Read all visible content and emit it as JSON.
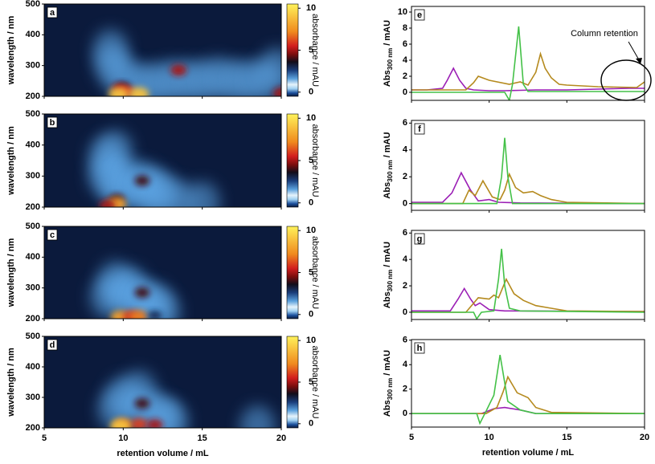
{
  "chart_data": [
    {
      "type": "heatmap",
      "panel_label": "a",
      "ylabel": "wavelength / nm",
      "xlim": [
        5,
        20
      ],
      "xticks": [
        5,
        10,
        15,
        20
      ],
      "ylim": [
        200,
        500
      ],
      "yticks": [
        200,
        300,
        400,
        500
      ],
      "clim": [
        -0.5,
        10.5
      ],
      "cticks": [
        0,
        5,
        10
      ],
      "colorbar_label": "absorbance / mAU",
      "spots": {
        "x": [
          9.3,
          10,
          11,
          12,
          13,
          14,
          15,
          16,
          17,
          18,
          19,
          19.7,
          9.2,
          10,
          9.8,
          10.2,
          9.7,
          11,
          13.5,
          20
        ],
        "y": [
          300,
          260,
          240,
          240,
          250,
          250,
          250,
          260,
          250,
          250,
          250,
          290,
          350,
          230,
          225,
          215,
          207,
          207,
          285,
          210
        ],
        "values": [
          1,
          1,
          1,
          1,
          1,
          1,
          1,
          1,
          1,
          1,
          1,
          1,
          1,
          3,
          5,
          6,
          9,
          9,
          5,
          5
        ]
      }
    },
    {
      "type": "heatmap",
      "panel_label": "b",
      "ylabel": "wavelength / nm",
      "xlim": [
        5,
        20
      ],
      "xticks": [
        5,
        10,
        15,
        20
      ],
      "ylim": [
        200,
        500
      ],
      "yticks": [
        200,
        300,
        400,
        500
      ],
      "clim": [
        -0.5,
        10.5
      ],
      "cticks": [
        0,
        5,
        10
      ],
      "colorbar_label": "absorbance / mAU",
      "spots": {
        "x": [
          8.9,
          8.9,
          9.5,
          9.5,
          9.8,
          10.5,
          11.2,
          11.5,
          12,
          12.5,
          13.5,
          15,
          9.6,
          9.6,
          11.2,
          9
        ],
        "y": [
          300,
          360,
          300,
          380,
          250,
          280,
          280,
          240,
          260,
          240,
          220,
          215,
          225,
          210,
          285,
          205
        ],
        "values": [
          1,
          1,
          1,
          1,
          1.5,
          1,
          1,
          1,
          1,
          1,
          1,
          1,
          4,
          8,
          4,
          5
        ]
      }
    },
    {
      "type": "heatmap",
      "panel_label": "c",
      "ylabel": "wavelength / nm",
      "xlim": [
        5,
        20
      ],
      "xticks": [
        5,
        10,
        15,
        20
      ],
      "ylim": [
        200,
        500
      ],
      "yticks": [
        200,
        300,
        400,
        500
      ],
      "clim": [
        -0.5,
        10.5
      ],
      "cticks": [
        0,
        5,
        10
      ],
      "colorbar_label": "absorbance / mAU",
      "spots": {
        "x": [
          9,
          9.5,
          10,
          10.5,
          11,
          11.5,
          12,
          12.5,
          11.2,
          9.8,
          10.5,
          11,
          12
        ],
        "y": [
          270,
          320,
          280,
          300,
          260,
          240,
          250,
          220,
          285,
          205,
          207,
          207,
          210
        ],
        "values": [
          1,
          1,
          1,
          1,
          1,
          1,
          1,
          1,
          4,
          8,
          6,
          7,
          3
        ]
      }
    },
    {
      "type": "heatmap",
      "panel_label": "d",
      "ylabel": "wavelength / nm",
      "xlabel": "retention volume / mL",
      "xlim": [
        5,
        20
      ],
      "xticks": [
        5,
        10,
        15,
        20
      ],
      "ylim": [
        200,
        500
      ],
      "yticks": [
        200,
        300,
        400,
        500
      ],
      "clim": [
        -0.5,
        10.5
      ],
      "cticks": [
        0,
        5,
        10
      ],
      "colorbar_label": "absorbance / mAU",
      "spots": {
        "x": [
          9.5,
          10,
          11,
          11,
          12,
          12.5,
          13,
          11.2,
          10,
          11,
          12,
          9.8,
          18.5
        ],
        "y": [
          260,
          300,
          320,
          260,
          250,
          230,
          220,
          280,
          210,
          212,
          210,
          205,
          205
        ],
        "values": [
          1,
          1,
          1,
          1,
          1,
          1,
          1,
          4,
          7,
          6,
          5,
          9,
          1
        ]
      }
    },
    {
      "type": "line",
      "panel_label": "e",
      "ylabel": {
        "main": "Abs",
        "sub": "300 nm",
        "rest": "/ mAU"
      },
      "xlim": [
        5,
        20
      ],
      "xticks": [
        5,
        10,
        15,
        20
      ],
      "ylim": [
        -1,
        10.7
      ],
      "yticks": [
        0,
        2,
        4,
        6,
        8,
        10
      ],
      "annotation": "Column retention",
      "series": [
        {
          "color": "#9b1fb5",
          "x": [
            5,
            6,
            7,
            7.3,
            7.7,
            8.1,
            8.5,
            9,
            10,
            11,
            12,
            13,
            14,
            15,
            16,
            17,
            18,
            19,
            20
          ],
          "values": [
            0.3,
            0.3,
            0.5,
            1.5,
            3,
            1.5,
            0.5,
            0.3,
            0.2,
            0.2,
            0.25,
            0.3,
            0.3,
            0.3,
            0.35,
            0.4,
            0.45,
            0.5,
            0.5
          ]
        },
        {
          "color": "#b58a1e",
          "x": [
            5,
            8.5,
            9,
            9.3,
            10,
            11.3,
            12,
            12.5,
            13,
            13.3,
            13.6,
            14,
            14.5,
            15,
            17,
            19.5,
            20
          ],
          "values": [
            0.3,
            0.3,
            1.2,
            2,
            1.5,
            1,
            1.3,
            0.9,
            2.5,
            4.8,
            3,
            1.8,
            1,
            0.9,
            0.7,
            0.6,
            1.3
          ]
        },
        {
          "color": "#44c148",
          "x": [
            5,
            11,
            11.3,
            11.5,
            11.9,
            12.2,
            12.5,
            14,
            20
          ],
          "values": [
            0,
            0,
            -1,
            1,
            8.2,
            1,
            0.1,
            0.1,
            0.1
          ]
        }
      ]
    },
    {
      "type": "line",
      "panel_label": "f",
      "ylabel": {
        "main": "Abs",
        "sub": "300 nm",
        "rest": "/ mAU"
      },
      "xlim": [
        5,
        20
      ],
      "xticks": [
        5,
        10,
        15,
        20
      ],
      "ylim": [
        -0.5,
        6.2
      ],
      "yticks": [
        0,
        2,
        4,
        6
      ],
      "series": [
        {
          "color": "#9b1fb5",
          "x": [
            5,
            7,
            7.6,
            8.2,
            8.8,
            9.3,
            10,
            10.6,
            12,
            20
          ],
          "values": [
            0.1,
            0.1,
            0.8,
            2.3,
            1,
            0.2,
            0.3,
            0.1,
            0.05,
            0
          ]
        },
        {
          "color": "#b58a1e",
          "x": [
            5,
            8.3,
            8.7,
            9.1,
            9.6,
            10.2,
            10.7,
            11,
            11.3,
            11.7,
            12.2,
            12.8,
            13.3,
            14,
            15,
            20
          ],
          "values": [
            0,
            0,
            1,
            0.6,
            1.7,
            0.5,
            0.3,
            1,
            2.2,
            1.2,
            0.8,
            0.9,
            0.6,
            0.3,
            0.1,
            0
          ]
        },
        {
          "color": "#44c148",
          "x": [
            5,
            10.5,
            10.8,
            11,
            11.2,
            11.5,
            20
          ],
          "values": [
            0,
            0,
            2,
            4.9,
            2,
            0,
            0
          ]
        }
      ]
    },
    {
      "type": "line",
      "panel_label": "g",
      "ylabel": {
        "main": "Abs",
        "sub": "300 nm",
        "rest": "/ mAU"
      },
      "xlim": [
        5,
        20
      ],
      "xticks": [
        5,
        10,
        15,
        20
      ],
      "ylim": [
        -0.55,
        6.2
      ],
      "yticks": [
        0,
        2,
        4,
        6
      ],
      "series": [
        {
          "color": "#9b1fb5",
          "x": [
            5,
            7.5,
            8,
            8.4,
            8.8,
            9.1,
            9.4,
            10,
            11,
            20
          ],
          "values": [
            0.1,
            0.1,
            1,
            1.8,
            1,
            0.5,
            0.7,
            0.2,
            0.1,
            0.05
          ]
        },
        {
          "color": "#b58a1e",
          "x": [
            5,
            8.5,
            9.3,
            10,
            10.3,
            10.6,
            11.1,
            11.6,
            12.2,
            13,
            14,
            15,
            20
          ],
          "values": [
            0,
            0,
            1.1,
            1,
            1.3,
            1.1,
            2.5,
            1.4,
            0.9,
            0.5,
            0.3,
            0.1,
            0.05
          ]
        },
        {
          "color": "#44c148",
          "x": [
            5,
            9,
            9.2,
            9.5,
            10.3,
            10.6,
            10.8,
            11,
            11.3,
            12,
            20
          ],
          "values": [
            0,
            0,
            -0.5,
            0,
            0.1,
            2.5,
            4.8,
            2,
            0.3,
            0.1,
            0
          ]
        }
      ]
    },
    {
      "type": "line",
      "panel_label": "h",
      "ylabel": {
        "main": "Abs",
        "sub": "300 nm",
        "rest": "/ mAU"
      },
      "xlabel": "retention volume / mL",
      "xlim": [
        5,
        20
      ],
      "xticks": [
        5,
        10,
        15,
        20
      ],
      "ylim": [
        -1.1,
        6.05
      ],
      "yticks": [
        0,
        2,
        4,
        6
      ],
      "series": [
        {
          "color": "#9b1fb5",
          "x": [
            5,
            9.5,
            10.3,
            11,
            12,
            13,
            20
          ],
          "values": [
            0,
            0,
            0.4,
            0.5,
            0.3,
            0,
            0
          ]
        },
        {
          "color": "#b58a1e",
          "x": [
            5,
            9.8,
            10.5,
            10.9,
            11.2,
            11.8,
            12.5,
            13,
            14,
            20
          ],
          "values": [
            0,
            0,
            0.5,
            1.8,
            3,
            1.7,
            1.3,
            0.5,
            0.1,
            0
          ]
        },
        {
          "color": "#44c148",
          "x": [
            5,
            9.2,
            9.4,
            9.8,
            10.3,
            10.7,
            11.2,
            12,
            13,
            20
          ],
          "values": [
            0,
            0,
            -0.8,
            0.2,
            1.5,
            4.8,
            1,
            0.3,
            0,
            0
          ]
        }
      ]
    }
  ]
}
